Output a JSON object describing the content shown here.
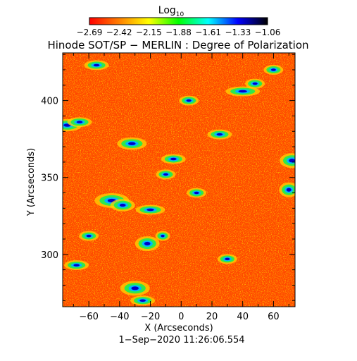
{
  "colorbar": {
    "label_base": "Log",
    "label_sub": "10",
    "ticks": [
      "−2.69",
      "−2.42",
      "−2.15",
      "−1.88",
      "−1.61",
      "−1.33",
      "−1.06"
    ],
    "colors": [
      "#ff0000",
      "#ff7f00",
      "#ffff00",
      "#00ff00",
      "#00ffff",
      "#0000ff",
      "#000000"
    ]
  },
  "chart_data": {
    "type": "heatmap",
    "title": "Hinode SOT/SP − MERLIN : Degree of Polarization",
    "xlabel": "X (Arcseconds)",
    "ylabel": "Y (Arcseconds)",
    "xlim": [
      -77,
      74
    ],
    "ylim": [
      266,
      431
    ],
    "xticks": [
      -60,
      -40,
      -20,
      0,
      20,
      40,
      60
    ],
    "xtick_labels": [
      "−60",
      "−40",
      "−20",
      "0",
      "20",
      "40",
      "60"
    ],
    "yticks": [
      300,
      350,
      400
    ],
    "ytick_labels": [
      "300",
      "350",
      "400"
    ],
    "color_scale": "log10",
    "color_range": [
      -2.69,
      -1.06
    ],
    "palette": [
      "#ff0000",
      "#ff7f00",
      "#ffff00",
      "#00ff00",
      "#00ffff",
      "#0000ff",
      "#000000"
    ],
    "background_color": "#ff4a00",
    "date_label": "1−Sep−2020 11:26:06.554"
  }
}
